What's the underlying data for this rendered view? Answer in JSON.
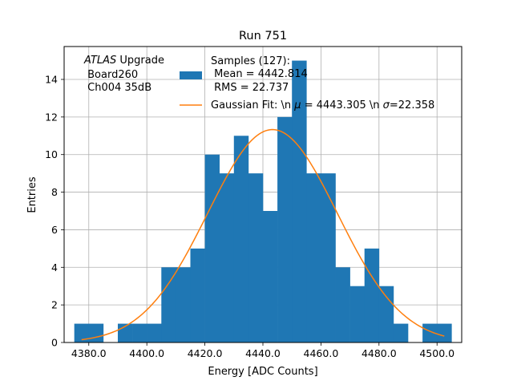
{
  "chart_data": {
    "type": "bar",
    "title": "Run 751",
    "xlabel": "Energy [ADC Counts]",
    "ylabel": "Entries",
    "xlim": [
      4371.5,
      4508.5
    ],
    "ylim": [
      0,
      15.75
    ],
    "grid": true,
    "bin_width": 5,
    "bins": [
      {
        "x0": 4375,
        "count": 1
      },
      {
        "x0": 4380,
        "count": 1
      },
      {
        "x0": 4385,
        "count": 0
      },
      {
        "x0": 4390,
        "count": 1
      },
      {
        "x0": 4395,
        "count": 1
      },
      {
        "x0": 4400,
        "count": 1
      },
      {
        "x0": 4405,
        "count": 4
      },
      {
        "x0": 4410,
        "count": 4
      },
      {
        "x0": 4415,
        "count": 5
      },
      {
        "x0": 4420,
        "count": 10
      },
      {
        "x0": 4425,
        "count": 9
      },
      {
        "x0": 4430,
        "count": 11
      },
      {
        "x0": 4435,
        "count": 9
      },
      {
        "x0": 4440,
        "count": 7
      },
      {
        "x0": 4445,
        "count": 12
      },
      {
        "x0": 4450,
        "count": 15
      },
      {
        "x0": 4455,
        "count": 9
      },
      {
        "x0": 4460,
        "count": 9
      },
      {
        "x0": 4465,
        "count": 4
      },
      {
        "x0": 4470,
        "count": 3
      },
      {
        "x0": 4475,
        "count": 5
      },
      {
        "x0": 4480,
        "count": 3
      },
      {
        "x0": 4485,
        "count": 1
      },
      {
        "x0": 4490,
        "count": 0
      },
      {
        "x0": 4495,
        "count": 1
      },
      {
        "x0": 4500,
        "count": 1
      }
    ],
    "xticks": [
      4380.0,
      4400.0,
      4420.0,
      4440.0,
      4460.0,
      4480.0,
      4500.0
    ],
    "xtick_labels": [
      "4380.0",
      "4400.0",
      "4420.0",
      "4440.0",
      "4460.0",
      "4480.0",
      "4500.0"
    ],
    "yticks": [
      0,
      2,
      4,
      6,
      8,
      10,
      12,
      14
    ],
    "ytick_labels": [
      "0",
      "2",
      "4",
      "6",
      "8",
      "10",
      "12",
      "14"
    ],
    "gaussian": {
      "amplitude": 11.33,
      "mean": 4443.305,
      "sigma": 22.358,
      "x_range": [
        4377.5,
        4502.5
      ]
    },
    "legend": {
      "placement": "top-right",
      "histogram_label_lines": [
        "Samples (127):",
        " Mean = 4442.814",
        " RMS = 22.737"
      ],
      "fit_label_prefix": "Gaussian Fit: \\n ",
      "fit_label_mu": "μ",
      "fit_label_mid": " = 4443.305 \\n ",
      "fit_label_sigma": "σ",
      "fit_label_suffix": "=22.358"
    },
    "annotation": {
      "atlas": "ATLAS",
      "upgrade": " Upgrade",
      "line2": " Board260",
      "line3": " Ch004 35dB"
    },
    "colors": {
      "bars": "#1f77b4",
      "fit": "#ff7f0e",
      "grid": "#b0b0b0"
    }
  }
}
